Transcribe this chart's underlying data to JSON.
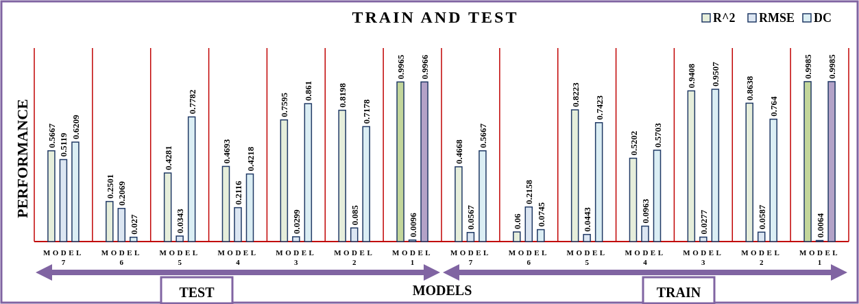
{
  "chart_data": {
    "type": "bar",
    "title": "TRAIN AND TEST",
    "xlabel": "MODELS",
    "ylabel": "PERFORMANCE",
    "categories": [
      "MODEL 7",
      "MODEL 6",
      "MODEL 5",
      "MODEL 4",
      "MODEL 3",
      "MODEL 2",
      "MODEL 1",
      "MODEL 7",
      "MODEL 6",
      "MODEL 5",
      "MODEL 4",
      "MODEL 3",
      "MODEL 2",
      "MODEL 1"
    ],
    "series": [
      {
        "name": "R^2",
        "color": "#e6eedb",
        "colors": [
          "#e6eedb",
          "#e6eedb",
          "#e6eedb",
          "#e6eedb",
          "#e6eedb",
          "#e6eedb",
          "#c3d69b",
          "#e6eedb",
          "#e6eedb",
          "#e6eedb",
          "#e6eedb",
          "#e6eedb",
          "#e6eedb",
          "#c3d69b"
        ],
        "values": [
          0.5667,
          0.2501,
          0.4281,
          0.4693,
          0.7595,
          0.8198,
          0.9965,
          0.4668,
          0.06,
          0.8223,
          0.5202,
          0.9408,
          0.8638,
          0.9985
        ]
      },
      {
        "name": "RMSE",
        "color": "#dce6f2",
        "values": [
          0.5119,
          0.2069,
          0.0343,
          0.2116,
          0.0299,
          0.085,
          0.0096,
          0.0567,
          0.2158,
          0.0443,
          0.0963,
          0.0277,
          0.0587,
          0.0064
        ]
      },
      {
        "name": "DC",
        "color": "#dbeef4",
        "colors": [
          "#dbeef4",
          "#dbeef4",
          "#dbeef4",
          "#dbeef4",
          "#dbeef4",
          "#dbeef4",
          "#b3a2c7",
          "#dbeef4",
          "#dbeef4",
          "#dbeef4",
          "#dbeef4",
          "#dbeef4",
          "#dbeef4",
          "#b3a2c7"
        ],
        "values": [
          0.6209,
          0.027,
          0.7782,
          0.4218,
          0.861,
          0.7178,
          0.9966,
          0.5667,
          0.0745,
          0.7423,
          0.5703,
          0.9507,
          0.764,
          0.9985
        ]
      }
    ],
    "data_labels": true,
    "grid": "x",
    "legend": "top right",
    "annotations": [
      "TEST",
      "TRAIN"
    ]
  }
}
